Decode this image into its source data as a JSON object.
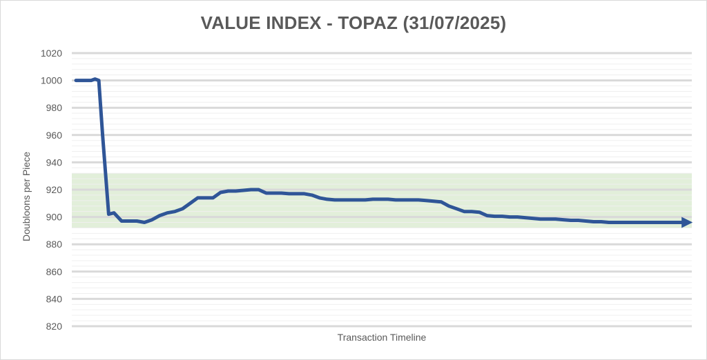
{
  "chart_data": {
    "type": "line",
    "title": "VALUE INDEX - TOPAZ (31/07/2025)",
    "xlabel": "Transaction Timeline",
    "ylabel": "Doubloons per Piece",
    "ylim": [
      820,
      1020
    ],
    "yticks": [
      1020,
      1000,
      980,
      960,
      940,
      920,
      900,
      880,
      860,
      840,
      820
    ],
    "grid": true,
    "band": {
      "low": 892,
      "high": 932,
      "color": "#e2efda"
    },
    "series": [
      {
        "color": "#2f5597",
        "x": [
          0,
          2.0,
          2.5,
          3.0,
          3.5,
          4.3,
          5,
          6,
          6.5,
          7.3,
          8,
          9,
          10,
          11,
          12,
          13,
          13.5,
          14,
          15,
          16,
          17,
          18,
          19,
          20,
          21,
          22,
          23,
          24,
          25,
          26,
          27,
          28,
          29,
          30,
          31,
          32,
          33,
          34,
          35,
          36,
          37,
          38,
          39,
          40,
          41,
          42,
          43,
          44,
          45,
          46,
          47,
          48,
          49,
          50,
          51,
          52,
          53,
          54,
          55,
          56,
          57,
          58,
          59,
          60,
          61,
          62,
          63,
          64,
          65,
          66,
          67,
          68,
          69,
          70,
          71,
          72,
          73,
          74,
          75,
          76,
          77,
          78,
          79,
          80
        ],
        "y": [
          1000,
          1000,
          1001,
          1000,
          960,
          902,
          903,
          897,
          897,
          897,
          897,
          896,
          898,
          901,
          903,
          904,
          905,
          906,
          910,
          914,
          914,
          914,
          918,
          919,
          919,
          919.5,
          920,
          920,
          917.5,
          917.5,
          917.5,
          917,
          917,
          917,
          916,
          914,
          913,
          912.5,
          912.5,
          912.5,
          912.5,
          912.5,
          913,
          913,
          913,
          912.5,
          912.5,
          912.5,
          912.5,
          912,
          911.5,
          911,
          908,
          906,
          904,
          904,
          903.5,
          901,
          900.5,
          900.5,
          900,
          900,
          899.5,
          899,
          898.5,
          898.5,
          898.5,
          898,
          897.5,
          897.5,
          897,
          896.5,
          896.5,
          896,
          896,
          896,
          896,
          896,
          896,
          896,
          896,
          896,
          896,
          896
        ]
      }
    ]
  }
}
